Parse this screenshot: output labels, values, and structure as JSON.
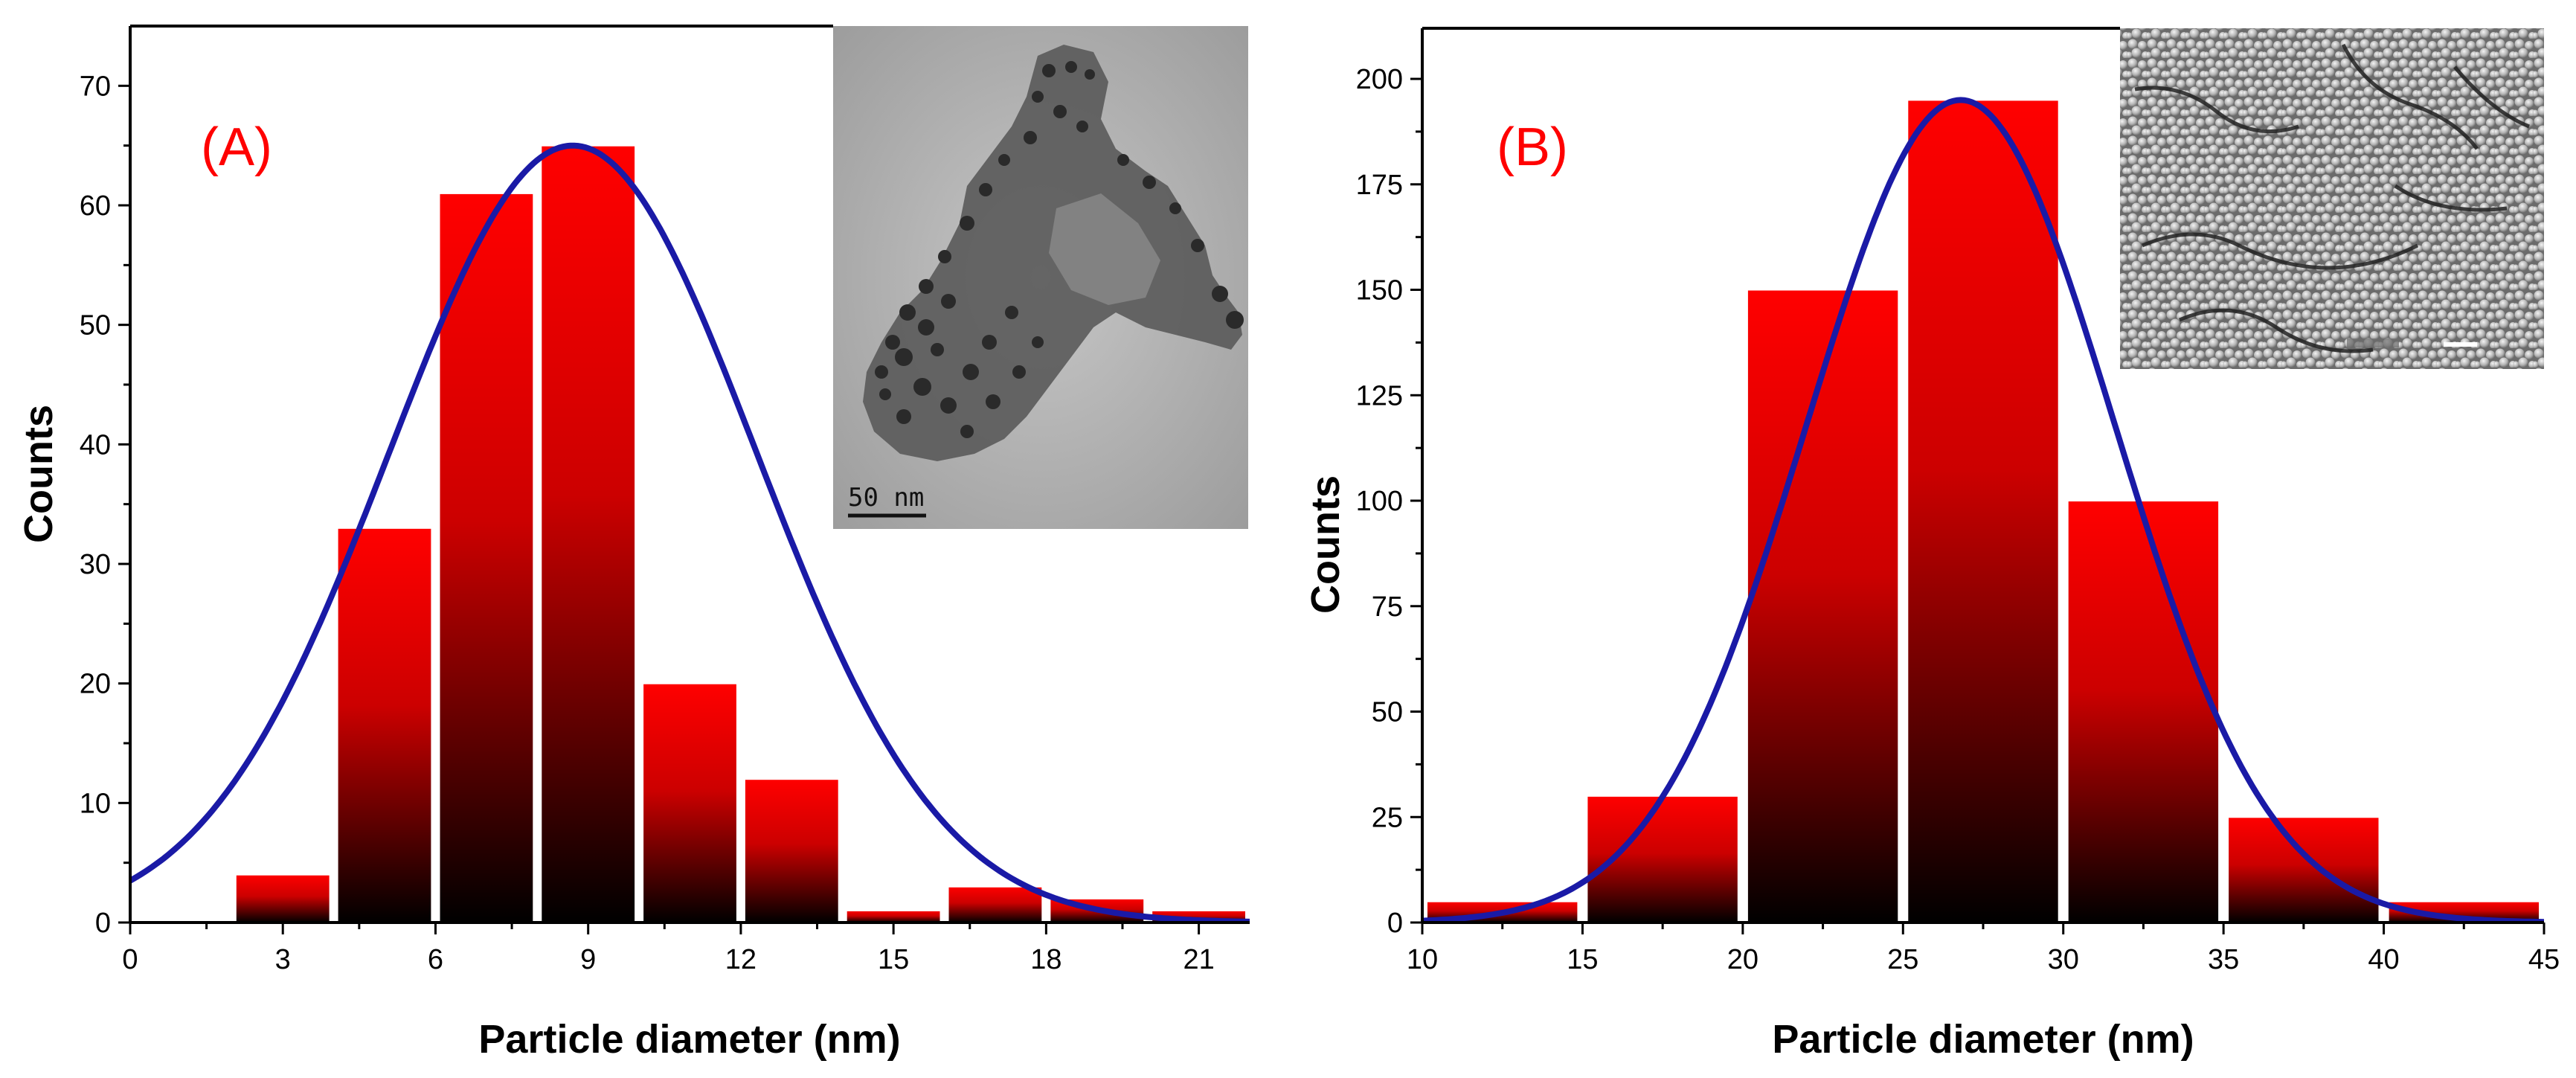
{
  "colors": {
    "bar_top": "#ff0000",
    "bar_bottom": "#000000",
    "fit_curve": "#1a1aa6",
    "panel_label": "#ff0000",
    "axis": "#000000"
  },
  "chart_data": [
    {
      "type": "bar",
      "panel_label": "(A)",
      "xlabel": "Particle diameter (nm)",
      "ylabel": "Counts",
      "xlim": [
        0,
        22
      ],
      "ylim": [
        0,
        75
      ],
      "xticks": [
        0,
        3,
        6,
        9,
        12,
        15,
        18,
        21
      ],
      "yticks": [
        0,
        10,
        20,
        30,
        40,
        50,
        60,
        70
      ],
      "bins": [
        {
          "start": 2,
          "end": 4,
          "value": 4
        },
        {
          "start": 4,
          "end": 6,
          "value": 33
        },
        {
          "start": 6,
          "end": 8,
          "value": 61
        },
        {
          "start": 8,
          "end": 10,
          "value": 65
        },
        {
          "start": 10,
          "end": 12,
          "value": 20
        },
        {
          "start": 12,
          "end": 14,
          "value": 12
        },
        {
          "start": 14,
          "end": 16,
          "value": 1
        },
        {
          "start": 16,
          "end": 18,
          "value": 3
        },
        {
          "start": 18,
          "end": 20,
          "value": 2
        },
        {
          "start": 20,
          "end": 22,
          "value": 1
        }
      ],
      "fit": {
        "type": "gaussian",
        "mean": 8.7,
        "sigma": 3.6,
        "amplitude": 65
      },
      "inset": {
        "kind": "TEM micrograph",
        "scale_bar_label": "50 nm"
      }
    },
    {
      "type": "bar",
      "panel_label": "(B)",
      "xlabel": "Particle diameter (nm)",
      "ylabel": "Counts",
      "xlim": [
        10,
        45
      ],
      "ylim": [
        0,
        212
      ],
      "xticks": [
        10,
        15,
        20,
        25,
        30,
        35,
        40,
        45
      ],
      "yticks": [
        0,
        25,
        50,
        75,
        100,
        125,
        150,
        175,
        200
      ],
      "bins": [
        {
          "start": 10,
          "end": 15,
          "value": 5
        },
        {
          "start": 15,
          "end": 20,
          "value": 30
        },
        {
          "start": 20,
          "end": 25,
          "value": 150
        },
        {
          "start": 25,
          "end": 30,
          "value": 195
        },
        {
          "start": 30,
          "end": 35,
          "value": 100
        },
        {
          "start": 35,
          "end": 40,
          "value": 25
        },
        {
          "start": 40,
          "end": 45,
          "value": 5
        }
      ],
      "fit": {
        "type": "gaussian",
        "mean": 26.8,
        "sigma": 4.8,
        "amplitude": 195
      },
      "inset": {
        "kind": "SEM micrograph"
      }
    }
  ]
}
